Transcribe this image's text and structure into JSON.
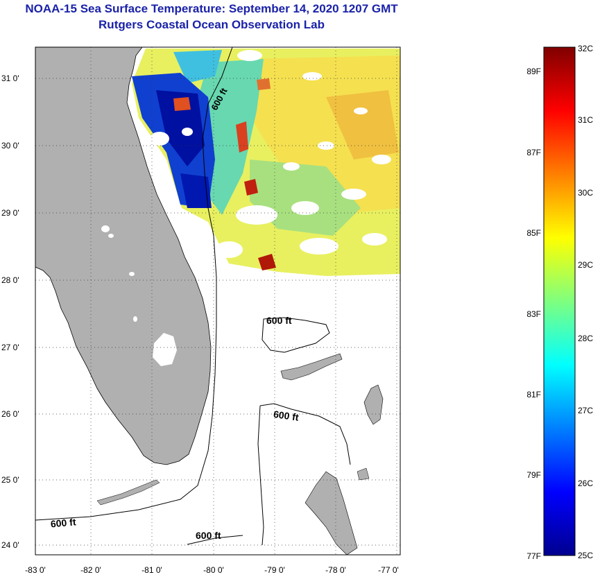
{
  "title": "NOAA-15 Sea Surface Temperature:  September 14, 2020 1207 GMT",
  "subtitle": "Rutgers Coastal Ocean Observation Lab",
  "map": {
    "lat_labels": [
      "31 0'",
      "30 0'",
      "29 0'",
      "28 0'",
      "27 0'",
      "26 0'",
      "25 0'",
      "24 0'"
    ],
    "lon_labels": [
      "-83 0'",
      "-82 0'",
      "-81 0'",
      "-80 0'",
      "-79 0'",
      "-78 0'",
      "-77 0'"
    ],
    "isobath_label": "600 ft",
    "land_color": "#b0b0b0",
    "grid": "dotted"
  },
  "colorbar": {
    "c_labels": [
      "32C",
      "31C",
      "30C",
      "29C",
      "28C",
      "27C",
      "26C",
      "25C"
    ],
    "f_labels": [
      "89F",
      "87F",
      "85F",
      "83F",
      "81F",
      "79F",
      "77F"
    ],
    "colormap": "jet",
    "range_c": [
      25,
      32
    ]
  }
}
